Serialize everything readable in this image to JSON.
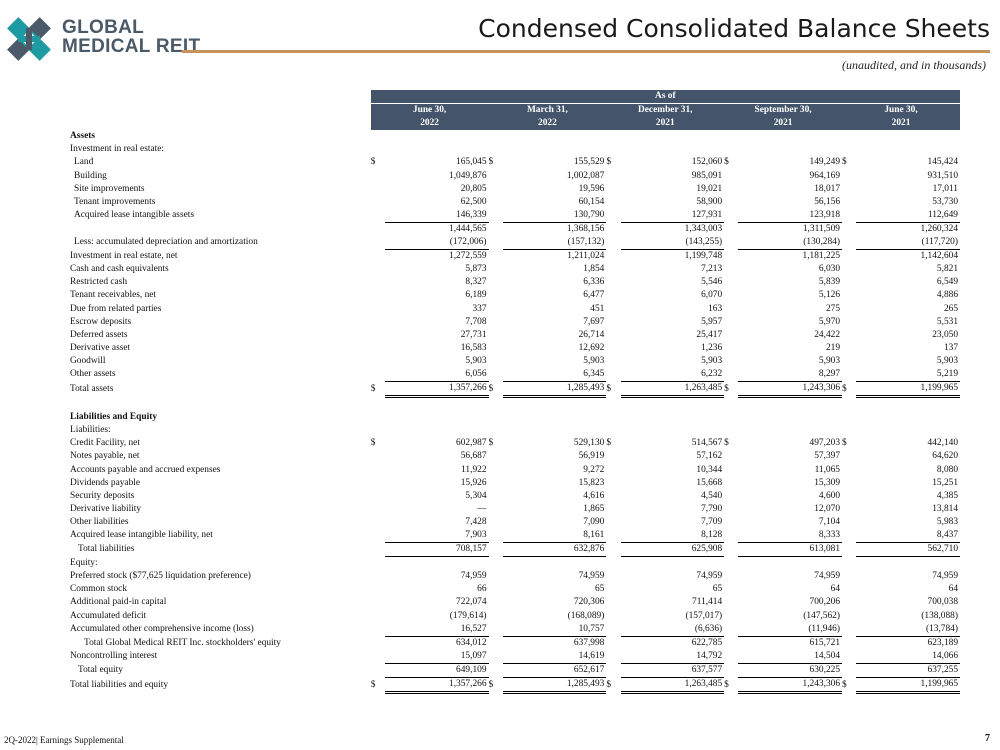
{
  "header": {
    "logo_line1": "GLOBAL",
    "logo_line2": "MEDICAL REIT",
    "title": "Condensed Consolidated Balance Sheets",
    "subtitle": "(unaudited, and in thousands)"
  },
  "colors": {
    "header_bg": "#44546a",
    "rule": "#c9935f",
    "logo_teal": "#1e9aa3",
    "logo_gray": "#4a5a68"
  },
  "table": {
    "as_of": "As of",
    "periods": [
      {
        "l1": "June 30,",
        "l2": "2022"
      },
      {
        "l1": "March 31,",
        "l2": "2022"
      },
      {
        "l1": "December 31,",
        "l2": "2021"
      },
      {
        "l1": "September 30,",
        "l2": "2021"
      },
      {
        "l1": "June 30,",
        "l2": "2021"
      }
    ],
    "rows": [
      {
        "label": "Assets",
        "style": "section"
      },
      {
        "label": "Investment in real estate:",
        "indent": 0
      },
      {
        "label": "Land",
        "indent": 1,
        "cur": true,
        "v": [
          "165,045",
          "155,529",
          "152,060",
          "149,249",
          "145,424"
        ]
      },
      {
        "label": "Building",
        "indent": 1,
        "v": [
          "1,049,876",
          "1,002,087",
          "985,091",
          "964,169",
          "931,510"
        ]
      },
      {
        "label": "Site improvements",
        "indent": 1,
        "v": [
          "20,805",
          "19,596",
          "19,021",
          "18,017",
          "17,011"
        ]
      },
      {
        "label": "Tenant improvements",
        "indent": 1,
        "v": [
          "62,500",
          "60,154",
          "58,900",
          "56,156",
          "53,730"
        ]
      },
      {
        "label": "Acquired lease intangible assets",
        "indent": 1,
        "v": [
          "146,339",
          "130,790",
          "127,931",
          "123,918",
          "112,649"
        ],
        "ul": true
      },
      {
        "label": "",
        "indent": 1,
        "v": [
          "1,444,565",
          "1,368,156",
          "1,343,003",
          "1,311,509",
          "1,260,324"
        ]
      },
      {
        "label": "Less: accumulated depreciation and amortization",
        "indent": 1,
        "v": [
          "(172,006)",
          "(157,132)",
          "(143,255)",
          "(130,284)",
          "(117,720)"
        ],
        "ul": true
      },
      {
        "label": "Investment in real estate, net",
        "indent": 0,
        "v": [
          "1,272,559",
          "1,211,024",
          "1,199,748",
          "1,181,225",
          "1,142,604"
        ]
      },
      {
        "label": "Cash and cash equivalents",
        "indent": 0,
        "v": [
          "5,873",
          "1,854",
          "7,213",
          "6,030",
          "5,821"
        ]
      },
      {
        "label": "Restricted cash",
        "indent": 0,
        "v": [
          "8,327",
          "6,336",
          "5,546",
          "5,839",
          "6,549"
        ]
      },
      {
        "label": "Tenant receivables, net",
        "indent": 0,
        "v": [
          "6,189",
          "6,477",
          "6,070",
          "5,126",
          "4,886"
        ]
      },
      {
        "label": "Due from related parties",
        "indent": 0,
        "v": [
          "337",
          "451",
          "163",
          "275",
          "265"
        ]
      },
      {
        "label": "Escrow deposits",
        "indent": 0,
        "v": [
          "7,708",
          "7,697",
          "5,957",
          "5,970",
          "5,531"
        ]
      },
      {
        "label": "Deferred assets",
        "indent": 0,
        "v": [
          "27,731",
          "26,714",
          "25,417",
          "24,422",
          "23,050"
        ]
      },
      {
        "label": "Derivative asset",
        "indent": 0,
        "v": [
          "16,583",
          "12,692",
          "1,236",
          "219",
          "137"
        ]
      },
      {
        "label": "Goodwill",
        "indent": 0,
        "v": [
          "5,903",
          "5,903",
          "5,903",
          "5,903",
          "5,903"
        ]
      },
      {
        "label": "Other assets",
        "indent": 0,
        "v": [
          "6,056",
          "6,345",
          "6,232",
          "8,297",
          "5,219"
        ],
        "ul": true
      },
      {
        "label": "Total assets",
        "indent": 0,
        "cur": true,
        "v": [
          "1,357,266",
          "1,285,493",
          "1,263,485",
          "1,243,306",
          "1,199,965"
        ],
        "dbl": true
      },
      {
        "label": "",
        "style": "spacer"
      },
      {
        "label": "Liabilities and Equity",
        "style": "section"
      },
      {
        "label": "Liabilities:",
        "indent": 0
      },
      {
        "label": "Credit Facility, net",
        "indent": 0,
        "cur": true,
        "v": [
          "602,987",
          "529,130",
          "514,567",
          "497,203",
          "442,140"
        ]
      },
      {
        "label": "Notes payable, net",
        "indent": 0,
        "v": [
          "56,687",
          "56,919",
          "57,162",
          "57,397",
          "64,620"
        ]
      },
      {
        "label": "Accounts payable and accrued expenses",
        "indent": 0,
        "v": [
          "11,922",
          "9,272",
          "10,344",
          "11,065",
          "8,080"
        ]
      },
      {
        "label": "Dividends payable",
        "indent": 0,
        "v": [
          "15,926",
          "15,823",
          "15,668",
          "15,309",
          "15,251"
        ]
      },
      {
        "label": "Security deposits",
        "indent": 0,
        "v": [
          "5,304",
          "4,616",
          "4,540",
          "4,600",
          "4,385"
        ]
      },
      {
        "label": "Derivative liability",
        "indent": 0,
        "v": [
          "—",
          "1,865",
          "7,790",
          "12,070",
          "13,814"
        ]
      },
      {
        "label": "Other liabilities",
        "indent": 0,
        "v": [
          "7,428",
          "7,090",
          "7,709",
          "7,104",
          "5,983"
        ]
      },
      {
        "label": "Acquired lease intangible liability, net",
        "indent": 0,
        "v": [
          "7,903",
          "8,161",
          "8,128",
          "8,333",
          "8,437"
        ],
        "ul": true
      },
      {
        "label": "Total liabilities",
        "indent": 2,
        "v": [
          "708,157",
          "632,876",
          "625,908",
          "613,081",
          "562,710"
        ],
        "ul": true
      },
      {
        "label": "Equity:",
        "indent": 0
      },
      {
        "label": "Preferred stock ($77,625 liquidation preference)",
        "indent": 0,
        "v": [
          "74,959",
          "74,959",
          "74,959",
          "74,959",
          "74,959"
        ]
      },
      {
        "label": "Common stock",
        "indent": 0,
        "v": [
          "66",
          "65",
          "65",
          "64",
          "64"
        ]
      },
      {
        "label": "Additional paid-in capital",
        "indent": 0,
        "v": [
          "722,074",
          "720,306",
          "711,414",
          "700,206",
          "700,038"
        ]
      },
      {
        "label": "Accumulated deficit",
        "indent": 0,
        "v": [
          "(179,614)",
          "(168,089)",
          "(157,017)",
          "(147,562)",
          "(138,088)"
        ]
      },
      {
        "label": "Accumulated other comprehensive income (loss)",
        "indent": 0,
        "v": [
          "16,527",
          "10,757",
          "(6,636)",
          "(11,946)",
          "(13,784)"
        ],
        "ul": true
      },
      {
        "label": "Total Global Medical REIT Inc. stockholders' equity",
        "indent": 3,
        "v": [
          "634,012",
          "637,998",
          "622,785",
          "615,721",
          "623,189"
        ]
      },
      {
        "label": "Noncontrolling interest",
        "indent": 0,
        "v": [
          "15,097",
          "14,619",
          "14,792",
          "14,504",
          "14,066"
        ],
        "ul": true
      },
      {
        "label": "Total equity",
        "indent": 2,
        "v": [
          "649,109",
          "652,617",
          "637,577",
          "630,225",
          "637,255"
        ],
        "ul": true
      },
      {
        "label": "Total liabilities and equity",
        "indent": 0,
        "cur": true,
        "v": [
          "1,357,266",
          "1,285,493",
          "1,263,485",
          "1,243,306",
          "1,199,965"
        ],
        "dbl": true
      }
    ],
    "currency_symbol": "$"
  },
  "footer": {
    "text": "2Q-2022| Earnings Supplemental",
    "page": "7"
  }
}
